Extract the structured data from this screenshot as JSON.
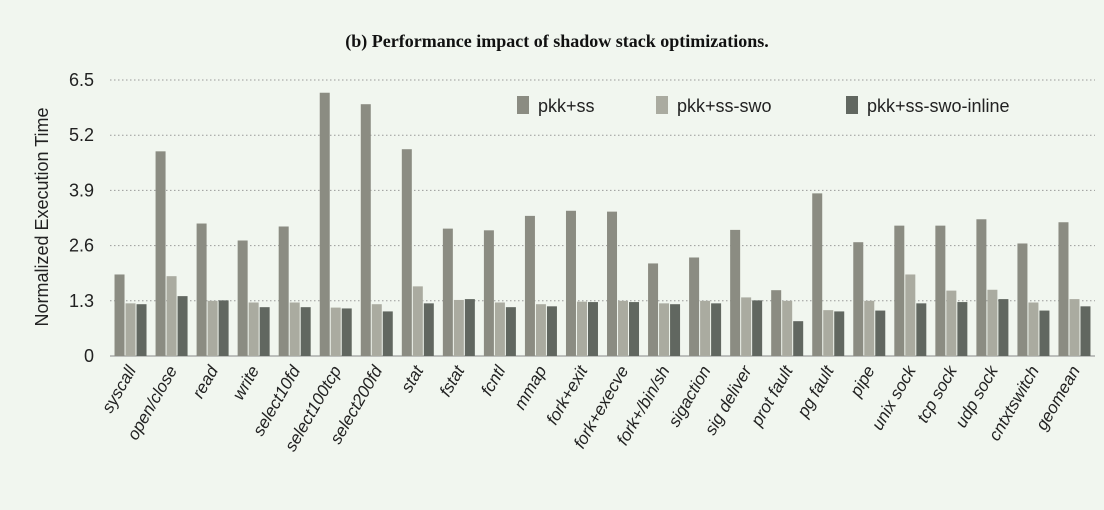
{
  "chart_data": {
    "type": "bar",
    "title": "(b) Performance impact of shadow stack optimizations.",
    "ylabel": "Normalized Execution Time",
    "xlabel": "",
    "ylim": [
      0,
      6.5
    ],
    "yticks": [
      "0",
      "1.3",
      "2.6",
      "3.9",
      "5.2",
      "6.5"
    ],
    "grid": true,
    "legend_position": "top-right",
    "categories": [
      "syscall",
      "open/close",
      "read",
      "write",
      "select10fd",
      "select100tcp",
      "select200fd",
      "stat",
      "fstat",
      "fcntl",
      "mmap",
      "fork+exit",
      "fork+execve",
      "fork+/bin/sh",
      "sigaction",
      "sig deliver",
      "prot fault",
      "pg fault",
      "pipe",
      "unix sock",
      "tcp sock",
      "udp sock",
      "cntxtswitch",
      "geomean"
    ],
    "series": [
      {
        "name": "pkk+ss",
        "color": "#8b8c82",
        "values": [
          1.92,
          4.82,
          3.12,
          2.72,
          3.05,
          6.2,
          5.93,
          4.87,
          3.0,
          2.96,
          3.3,
          3.42,
          3.4,
          2.18,
          2.32,
          2.97,
          1.55,
          3.83,
          2.68,
          3.07,
          3.07,
          3.22,
          2.65,
          3.15
        ]
      },
      {
        "name": "pkk+ss-swo",
        "color": "#aaaba0",
        "values": [
          1.24,
          1.88,
          1.3,
          1.26,
          1.26,
          1.14,
          1.22,
          1.64,
          1.32,
          1.26,
          1.22,
          1.28,
          1.3,
          1.24,
          1.3,
          1.38,
          1.3,
          1.08,
          1.3,
          1.92,
          1.54,
          1.56,
          1.26,
          1.34
        ]
      },
      {
        "name": "pkk+ss-swo-inline",
        "color": "#616760",
        "values": [
          1.22,
          1.41,
          1.31,
          1.15,
          1.15,
          1.12,
          1.05,
          1.24,
          1.34,
          1.15,
          1.17,
          1.27,
          1.27,
          1.22,
          1.24,
          1.31,
          0.82,
          1.05,
          1.07,
          1.24,
          1.27,
          1.34,
          1.07,
          1.17
        ]
      }
    ]
  }
}
